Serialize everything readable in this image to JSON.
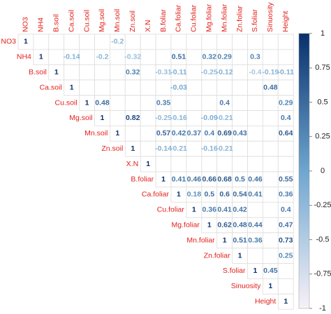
{
  "chart_data": {
    "type": "corrplot",
    "variables": [
      "NO3",
      "NH4",
      "B.soil",
      "Ca.soil",
      "Cu.soil",
      "Mg.soil",
      "Mn.soil",
      "Zn.soil",
      "X.N",
      "B.foliar",
      "Ca.foliar",
      "Cu.foliar",
      "Mg.foliar",
      "Mn.foliar",
      "Zn.foliar",
      "S.foliar",
      "Sinuosity",
      "Height"
    ],
    "values": [
      [
        1,
        null,
        null,
        null,
        null,
        null,
        -0.2,
        null,
        null,
        null,
        null,
        null,
        null,
        null,
        null,
        null,
        null,
        null
      ],
      [
        null,
        1,
        null,
        -0.14,
        null,
        -0.2,
        null,
        -0.32,
        null,
        null,
        0.51,
        null,
        0.32,
        0.29,
        null,
        0.3,
        null,
        null
      ],
      [
        null,
        null,
        1,
        null,
        null,
        null,
        null,
        0.32,
        null,
        -0.31,
        -0.11,
        null,
        -0.25,
        -0.12,
        null,
        -0.4,
        -0.19,
        -0.11
      ],
      [
        null,
        null,
        null,
        1,
        null,
        null,
        null,
        null,
        null,
        null,
        -0.03,
        null,
        null,
        null,
        null,
        null,
        0.48,
        null
      ],
      [
        null,
        null,
        null,
        null,
        1,
        0.48,
        null,
        null,
        null,
        0.35,
        null,
        null,
        null,
        0.4,
        null,
        null,
        null,
        0.29
      ],
      [
        null,
        null,
        null,
        null,
        null,
        1,
        null,
        0.82,
        null,
        -0.25,
        -0.16,
        null,
        -0.09,
        -0.21,
        null,
        null,
        null,
        0.4
      ],
      [
        null,
        null,
        null,
        null,
        null,
        null,
        1,
        null,
        null,
        0.57,
        0.42,
        0.37,
        0.4,
        0.69,
        0.43,
        null,
        null,
        0.64
      ],
      [
        null,
        null,
        null,
        null,
        null,
        null,
        null,
        1,
        null,
        -0.14,
        -0.21,
        null,
        -0.16,
        -0.21,
        null,
        null,
        null,
        null
      ],
      [
        null,
        null,
        null,
        null,
        null,
        null,
        null,
        null,
        1,
        null,
        null,
        null,
        null,
        null,
        null,
        null,
        null,
        null
      ],
      [
        null,
        null,
        null,
        null,
        null,
        null,
        null,
        null,
        null,
        1,
        0.41,
        0.46,
        0.66,
        0.68,
        0.5,
        0.46,
        null,
        0.55
      ],
      [
        null,
        null,
        null,
        null,
        null,
        null,
        null,
        null,
        null,
        null,
        1,
        0.18,
        0.5,
        0.6,
        0.54,
        0.41,
        null,
        0.36
      ],
      [
        null,
        null,
        null,
        null,
        null,
        null,
        null,
        null,
        null,
        null,
        null,
        1,
        0.36,
        0.41,
        0.42,
        null,
        null,
        0.4
      ],
      [
        null,
        null,
        null,
        null,
        null,
        null,
        null,
        null,
        null,
        null,
        null,
        null,
        1,
        0.62,
        0.48,
        0.44,
        null,
        0.47
      ],
      [
        null,
        null,
        null,
        null,
        null,
        null,
        null,
        null,
        null,
        null,
        null,
        null,
        null,
        1,
        0.51,
        0.36,
        null,
        0.73
      ],
      [
        null,
        null,
        null,
        null,
        null,
        null,
        null,
        null,
        null,
        null,
        null,
        null,
        null,
        null,
        1,
        null,
        null,
        0.25
      ],
      [
        null,
        null,
        null,
        null,
        null,
        null,
        null,
        null,
        null,
        null,
        null,
        null,
        null,
        null,
        null,
        1,
        0.45,
        null
      ],
      [
        null,
        null,
        null,
        null,
        null,
        null,
        null,
        null,
        null,
        null,
        null,
        null,
        null,
        null,
        null,
        null,
        1,
        null
      ],
      [
        null,
        null,
        null,
        null,
        null,
        null,
        null,
        null,
        null,
        null,
        null,
        null,
        null,
        null,
        null,
        null,
        null,
        1
      ]
    ],
    "clim": [
      -1,
      1
    ],
    "cticks": [
      1,
      0.75,
      0.5,
      0.25,
      0,
      -0.25,
      -0.5,
      -0.75,
      -1
    ],
    "colors": [
      "#f7f1f7",
      "#6ea6d0",
      "#08306b"
    ],
    "label_color": "#e3211c"
  }
}
